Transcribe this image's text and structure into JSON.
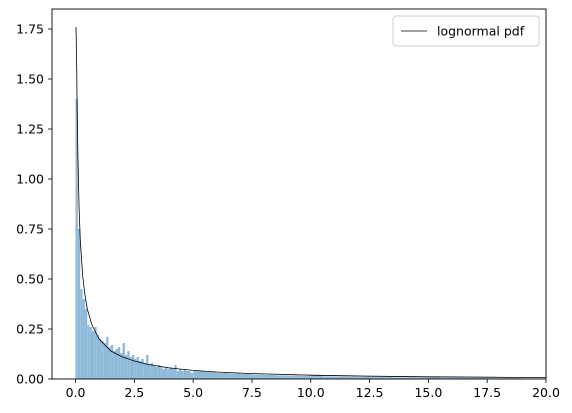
{
  "chart_data": {
    "type": "histogram",
    "title": "",
    "xlabel": "",
    "ylabel": "",
    "xlim": [
      -1,
      20
    ],
    "ylim": [
      0,
      1.85
    ],
    "x_ticks": [
      0.0,
      2.5,
      5.0,
      7.5,
      10.0,
      12.5,
      15.0,
      17.5,
      20.0
    ],
    "x_tick_labels": [
      "0.0",
      "2.5",
      "5.0",
      "7.5",
      "10.0",
      "12.5",
      "15.0",
      "17.5",
      "20.0"
    ],
    "y_ticks": [
      0.0,
      0.25,
      0.5,
      0.75,
      1.0,
      1.25,
      1.5,
      1.75
    ],
    "y_tick_labels": [
      "0.00",
      "0.25",
      "0.50",
      "0.75",
      "1.00",
      "1.25",
      "1.50",
      "1.75"
    ],
    "grid": false,
    "legend": {
      "position": "top-right",
      "entries": [
        {
          "label": "lognormal pdf",
          "color": "#000000"
        }
      ]
    },
    "histogram": {
      "name": "",
      "color": "#8fb9d9",
      "bin_width": 0.1,
      "bins": [
        {
          "x": 0.0,
          "h": 1.4
        },
        {
          "x": 0.1,
          "h": 0.75
        },
        {
          "x": 0.2,
          "h": 0.45
        },
        {
          "x": 0.3,
          "h": 0.4
        },
        {
          "x": 0.4,
          "h": 0.35
        },
        {
          "x": 0.5,
          "h": 0.27
        },
        {
          "x": 0.6,
          "h": 0.26
        },
        {
          "x": 0.7,
          "h": 0.24
        },
        {
          "x": 0.8,
          "h": 0.26
        },
        {
          "x": 0.9,
          "h": 0.22
        },
        {
          "x": 1.0,
          "h": 0.2
        },
        {
          "x": 1.1,
          "h": 0.19
        },
        {
          "x": 1.2,
          "h": 0.18
        },
        {
          "x": 1.3,
          "h": 0.21
        },
        {
          "x": 1.4,
          "h": 0.16
        },
        {
          "x": 1.5,
          "h": 0.17
        },
        {
          "x": 1.6,
          "h": 0.14
        },
        {
          "x": 1.7,
          "h": 0.15
        },
        {
          "x": 1.8,
          "h": 0.16
        },
        {
          "x": 1.9,
          "h": 0.13
        },
        {
          "x": 2.0,
          "h": 0.18
        },
        {
          "x": 2.1,
          "h": 0.12
        },
        {
          "x": 2.2,
          "h": 0.14
        },
        {
          "x": 2.3,
          "h": 0.11
        },
        {
          "x": 2.4,
          "h": 0.12
        },
        {
          "x": 2.5,
          "h": 0.1
        },
        {
          "x": 2.6,
          "h": 0.11
        },
        {
          "x": 2.7,
          "h": 0.09
        },
        {
          "x": 2.8,
          "h": 0.1
        },
        {
          "x": 2.9,
          "h": 0.08
        },
        {
          "x": 3.0,
          "h": 0.12
        },
        {
          "x": 3.1,
          "h": 0.07
        },
        {
          "x": 3.2,
          "h": 0.08
        },
        {
          "x": 3.3,
          "h": 0.07
        },
        {
          "x": 3.4,
          "h": 0.06
        },
        {
          "x": 3.5,
          "h": 0.07
        },
        {
          "x": 3.6,
          "h": 0.06
        },
        {
          "x": 3.7,
          "h": 0.05
        },
        {
          "x": 3.8,
          "h": 0.06
        },
        {
          "x": 3.9,
          "h": 0.05
        },
        {
          "x": 4.0,
          "h": 0.06
        },
        {
          "x": 4.1,
          "h": 0.05
        },
        {
          "x": 4.2,
          "h": 0.07
        },
        {
          "x": 4.3,
          "h": 0.04
        },
        {
          "x": 4.4,
          "h": 0.05
        },
        {
          "x": 4.5,
          "h": 0.04
        },
        {
          "x": 4.6,
          "h": 0.05
        },
        {
          "x": 4.7,
          "h": 0.04
        },
        {
          "x": 4.8,
          "h": 0.04
        },
        {
          "x": 4.9,
          "h": 0.03
        },
        {
          "x": 5.0,
          "h": 0.04
        },
        {
          "x": 5.5,
          "h": 0.035
        },
        {
          "x": 6.0,
          "h": 0.03
        },
        {
          "x": 6.5,
          "h": 0.028
        },
        {
          "x": 7.0,
          "h": 0.025
        },
        {
          "x": 7.5,
          "h": 0.022
        },
        {
          "x": 8.0,
          "h": 0.02
        },
        {
          "x": 8.5,
          "h": 0.018
        },
        {
          "x": 9.0,
          "h": 0.017
        },
        {
          "x": 9.5,
          "h": 0.015
        },
        {
          "x": 10.0,
          "h": 0.02
        },
        {
          "x": 10.5,
          "h": 0.013
        },
        {
          "x": 11.0,
          "h": 0.012
        },
        {
          "x": 11.5,
          "h": 0.011
        },
        {
          "x": 12.0,
          "h": 0.01
        },
        {
          "x": 12.5,
          "h": 0.009
        },
        {
          "x": 13.0,
          "h": 0.009
        },
        {
          "x": 13.5,
          "h": 0.008
        },
        {
          "x": 14.0,
          "h": 0.008
        },
        {
          "x": 14.5,
          "h": 0.007
        },
        {
          "x": 15.0,
          "h": 0.008
        },
        {
          "x": 15.5,
          "h": 0.006
        },
        {
          "x": 16.0,
          "h": 0.006
        },
        {
          "x": 16.5,
          "h": 0.005
        },
        {
          "x": 17.0,
          "h": 0.005
        },
        {
          "x": 17.5,
          "h": 0.004
        },
        {
          "x": 18.0,
          "h": 0.004
        },
        {
          "x": 18.5,
          "h": 0.004
        },
        {
          "x": 19.0,
          "h": 0.003
        },
        {
          "x": 19.5,
          "h": 0.003
        }
      ]
    },
    "curve": {
      "name": "lognormal pdf",
      "color": "#000000",
      "points": [
        [
          0.02,
          1.76
        ],
        [
          0.03,
          1.7
        ],
        [
          0.05,
          1.55
        ],
        [
          0.07,
          1.35
        ],
        [
          0.1,
          1.12
        ],
        [
          0.15,
          0.86
        ],
        [
          0.2,
          0.7
        ],
        [
          0.3,
          0.52
        ],
        [
          0.4,
          0.42
        ],
        [
          0.5,
          0.35
        ],
        [
          0.7,
          0.27
        ],
        [
          1.0,
          0.2
        ],
        [
          1.5,
          0.14
        ],
        [
          2.0,
          0.11
        ],
        [
          2.5,
          0.09
        ],
        [
          3.0,
          0.075
        ],
        [
          4.0,
          0.055
        ],
        [
          5.0,
          0.043
        ],
        [
          6.0,
          0.035
        ],
        [
          7.5,
          0.027
        ],
        [
          10.0,
          0.019
        ],
        [
          12.5,
          0.014
        ],
        [
          15.0,
          0.011
        ],
        [
          17.5,
          0.009
        ],
        [
          20.0,
          0.007
        ]
      ]
    }
  }
}
